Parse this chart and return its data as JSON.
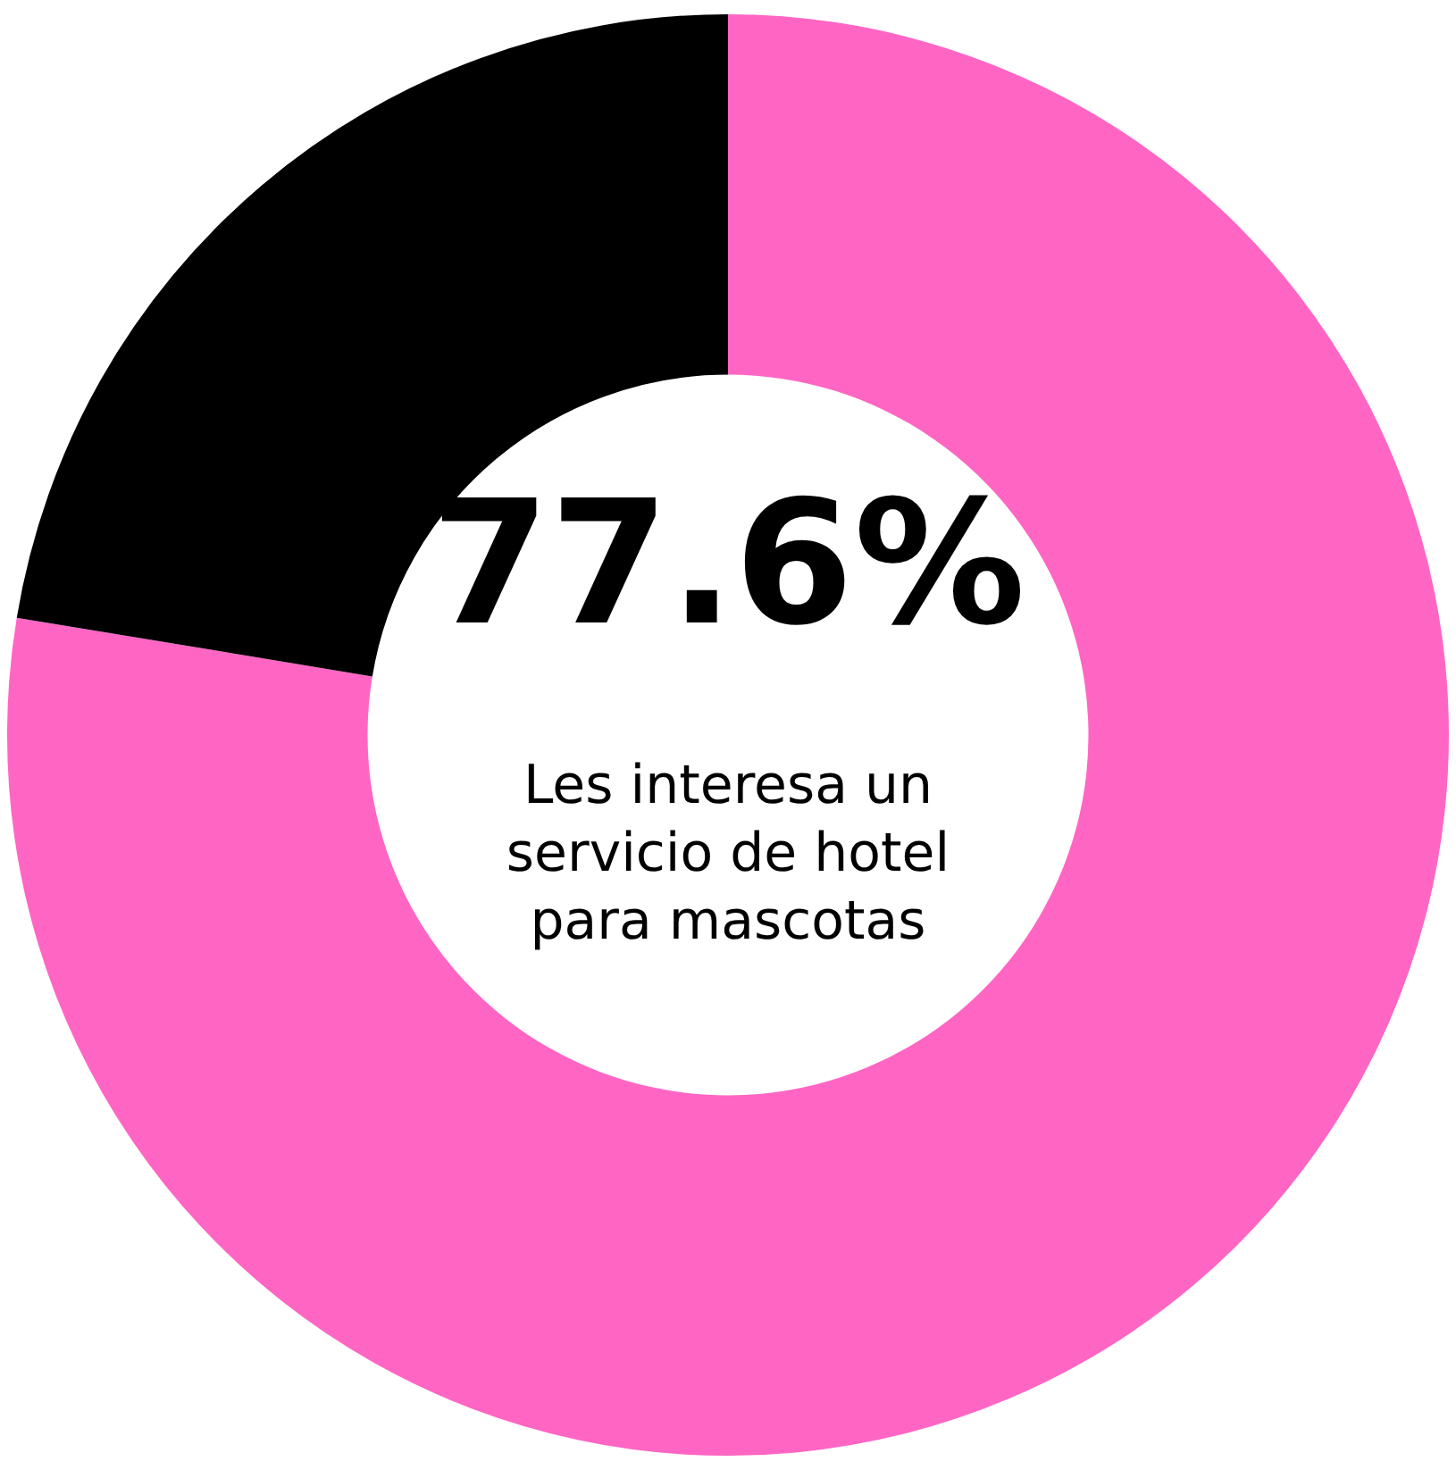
{
  "chart_data": {
    "type": "donut",
    "categories": [
      "Les interesa un servicio de hotel para mascotas",
      null
    ],
    "values": [
      77.6,
      22.4
    ],
    "colors": [
      "#ff66c4",
      "#000000"
    ],
    "value_labels": [
      "77.6%",
      null
    ],
    "legend": false
  }
}
